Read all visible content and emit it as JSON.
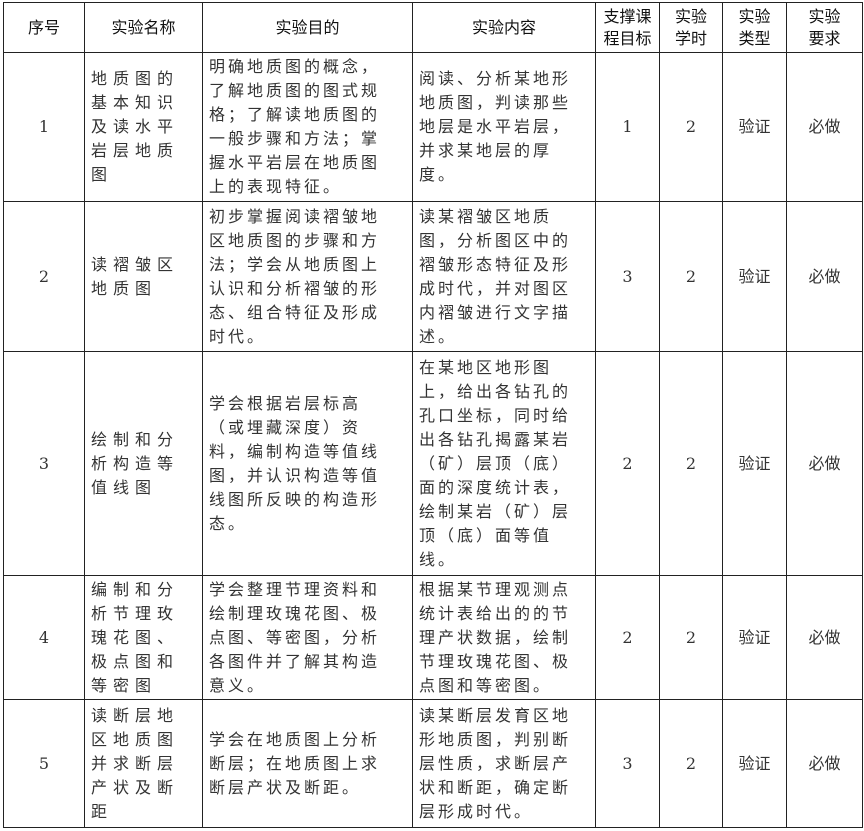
{
  "headers": [
    "序号",
    "实验名称",
    "实验目的",
    "实验内容",
    "支撑课\n程目标",
    "实验\n学时",
    "实验\n类型",
    "实验\n要求"
  ],
  "rows": [
    {
      "no": "1",
      "name": "地质图的\n基本知识\n及读水平\n岩层地质\n图",
      "purpose": "明确地质图的概念，\n了解地质图的图式规\n格；了解读地质图的\n一般步骤和方法；掌\n握水平岩层在地质图\n上的表现特征。",
      "content": "阅读、分析某地形\n地质图，判读那些\n地层是水平岩层，\n并求某地层的厚\n度。",
      "goal": "1",
      "hours": "2",
      "type": "验证",
      "req": "必做"
    },
    {
      "no": "2",
      "name": "读褶皱区\n地质图",
      "purpose": "初步掌握阅读褶皱地\n区地质图的步骤和方\n法；学会从地质图上\n认识和分析褶皱的形\n态、组合特征及形成\n时代。",
      "content": "读某褶皱区地质\n图，分析图区中的\n褶皱形态特征及形\n成时代，并对图区\n内褶皱进行文字描\n述。",
      "goal": "3",
      "hours": "2",
      "type": "验证",
      "req": "必做"
    },
    {
      "no": "3",
      "name": "绘制和分\n析构造等\n值线图",
      "purpose": "学会根据岩层标高\n（或埋藏深度）资\n料，编制构造等值线\n图，并认识构造等值\n线图所反映的构造形\n态。",
      "content": "在某地区地形图\n上，给出各钻孔的\n孔口坐标，同时给\n出各钻孔揭露某岩\n（矿）层顶（底）\n面的深度统计表，\n绘制某岩（矿）层\n顶（底）面等值\n线。",
      "goal": "2",
      "hours": "2",
      "type": "验证",
      "req": "必做"
    },
    {
      "no": "4",
      "name": "编制和分\n析节理玫\n瑰花图、\n极点图和\n等密图",
      "purpose": "学会整理节理资料和\n绘制理玫瑰花图、极\n点图、等密图，分析\n各图件并了解其构造\n意义。",
      "content": "根据某节理观测点\n统计表给出的的节\n理产状数据，绘制\n节理玫瑰花图、极\n点图和等密图。",
      "goal": "2",
      "hours": "2",
      "type": "验证",
      "req": "必做"
    },
    {
      "no": "5",
      "name": "读断层地\n区地质图\n并求断层\n产状及断\n距",
      "purpose": "学会在地质图上分析\n断层；在地质图上求\n断层产状及断距。",
      "content": "读某断层发育区地\n形地质图，判别断\n层性质，求断层产\n状和断距，确定断\n层形成时代。",
      "goal": "3",
      "hours": "2",
      "type": "验证",
      "req": "必做"
    }
  ]
}
